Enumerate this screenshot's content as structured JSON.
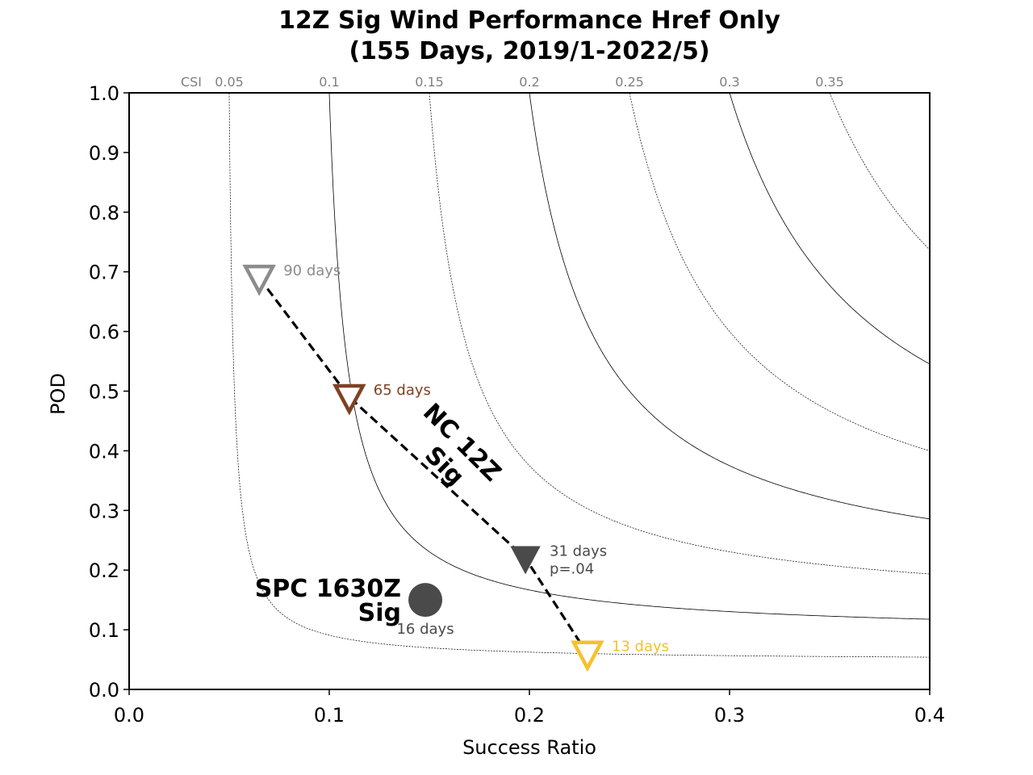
{
  "chart_data": {
    "type": "scatter",
    "title_lines": [
      "12Z Sig Wind Performance Href Only",
      "(155 Days, 2019/1-2022/5)"
    ],
    "xlabel": "Success Ratio",
    "ylabel": "POD",
    "xlim": [
      0.0,
      0.4
    ],
    "ylim": [
      0.0,
      1.0
    ],
    "x_ticks": [
      0.0,
      0.1,
      0.2,
      0.3,
      0.4
    ],
    "x_tick_labels": [
      "0.0",
      "0.1",
      "0.2",
      "0.3",
      "0.4"
    ],
    "y_ticks": [
      0.0,
      0.1,
      0.2,
      0.3,
      0.4,
      0.5,
      0.6,
      0.7,
      0.8,
      0.9,
      1.0
    ],
    "y_tick_labels": [
      "0.0",
      "0.1",
      "0.2",
      "0.3",
      "0.4",
      "0.5",
      "0.6",
      "0.7",
      "0.8",
      "0.9",
      "1.0"
    ],
    "csi_label": "CSI",
    "csi_contours": [
      {
        "value": 0.05,
        "label": "0.05",
        "style": "dashed"
      },
      {
        "value": 0.1,
        "label": "0.1",
        "style": "solid"
      },
      {
        "value": 0.15,
        "label": "0.15",
        "style": "dashed"
      },
      {
        "value": 0.2,
        "label": "0.2",
        "style": "solid"
      },
      {
        "value": 0.25,
        "label": "0.25",
        "style": "dashed"
      },
      {
        "value": 0.3,
        "label": "0.3",
        "style": "solid"
      },
      {
        "value": 0.35,
        "label": "0.35",
        "style": "dashed"
      }
    ],
    "series": [
      {
        "name": "NC 12Z Sig",
        "line_style": "dashed",
        "points": [
          {
            "x": 0.065,
            "y": 0.69,
            "label": "90 days",
            "label2": "",
            "color": "#8c8c8c",
            "filled": false
          },
          {
            "x": 0.11,
            "y": 0.49,
            "label": "65 days",
            "label2": "",
            "color": "#7f4125",
            "filled": false
          },
          {
            "x": 0.198,
            "y": 0.22,
            "label": "31 days",
            "label2": "p=.04",
            "color": "#4a4a4a",
            "filled": true
          },
          {
            "x": 0.229,
            "y": 0.06,
            "label": "13 days",
            "label2": "",
            "color": "#f4c22b",
            "filled": false
          }
        ]
      },
      {
        "name": "SPC 1630Z Sig",
        "points": [
          {
            "x": 0.148,
            "y": 0.15,
            "label": "16 days",
            "color": "#4a4a4a"
          }
        ]
      }
    ],
    "annotations": {
      "nc_label": [
        "NC 12Z",
        "Sig"
      ],
      "spc_label": [
        "SPC 1630Z",
        "Sig"
      ]
    }
  }
}
